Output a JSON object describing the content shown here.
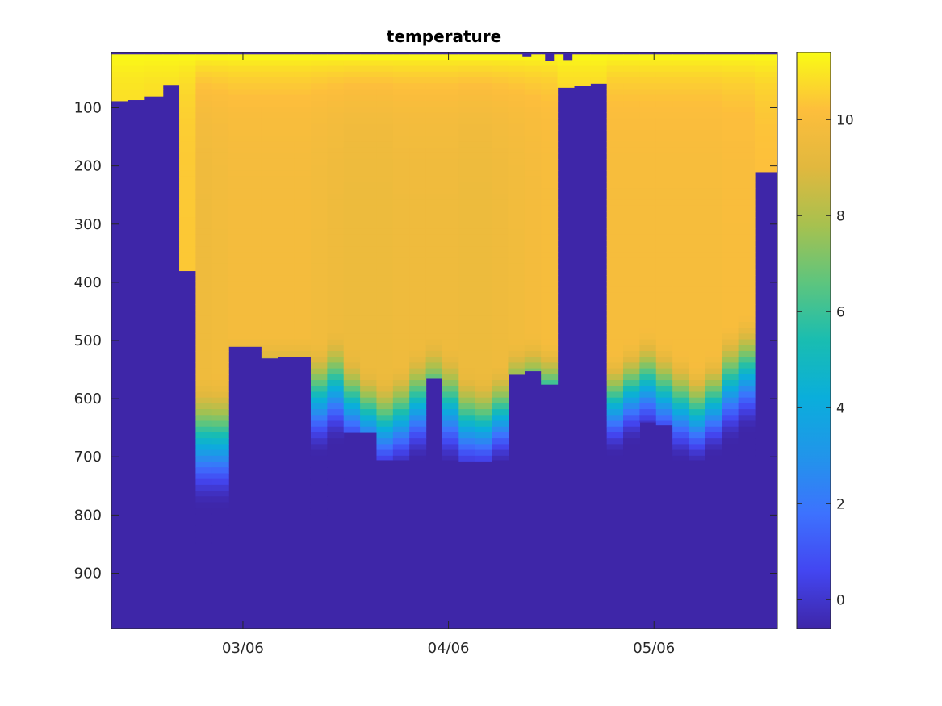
{
  "chart_data": {
    "type": "heatmap",
    "title": "temperature",
    "xlabel": "",
    "ylabel": "",
    "x_ticks": [
      "03/06",
      "04/06",
      "05/06"
    ],
    "x_tick_days": [
      13,
      23,
      33
    ],
    "xlim_days": [
      6.6,
      39.0
    ],
    "y_ticks": [
      100,
      200,
      300,
      400,
      500,
      600,
      700,
      800,
      900
    ],
    "ylim": [
      5,
      995
    ],
    "y_reversed": true,
    "grid": false,
    "colormap": "parula",
    "colorbar": {
      "ticks": [
        0,
        2,
        4,
        6,
        8,
        10
      ],
      "clim": [
        -0.6,
        11.4
      ]
    },
    "fill_value": -0.6,
    "surface_depth": 8,
    "profiles": [
      {
        "x": 6.6,
        "max_depth": 88,
        "base": 10.7,
        "cline_top": 700,
        "cline_bottom": 850
      },
      {
        "x": 7.4,
        "max_depth": 86,
        "base": 10.7,
        "cline_top": 700,
        "cline_bottom": 850
      },
      {
        "x": 8.2,
        "max_depth": 80,
        "base": 10.6,
        "cline_top": 700,
        "cline_bottom": 850
      },
      {
        "x": 9.1,
        "max_depth": 60,
        "base": 10.6,
        "cline_top": 700,
        "cline_bottom": 850
      },
      {
        "x": 9.9,
        "max_depth": 380,
        "base": 10.4,
        "cline_top": 700,
        "cline_bottom": 850
      },
      {
        "x": 10.7,
        "max_depth": 850,
        "base": 9.6,
        "cline_top": 560,
        "cline_bottom": 790
      },
      {
        "x": 11.5,
        "max_depth": 850,
        "base": 9.7,
        "cline_top": 560,
        "cline_bottom": 790
      },
      {
        "x": 12.3,
        "max_depth": 510,
        "base": 9.8,
        "cline_top": 490,
        "cline_bottom": 700
      },
      {
        "x": 13.1,
        "max_depth": 510,
        "base": 9.8,
        "cline_top": 490,
        "cline_bottom": 700
      },
      {
        "x": 13.9,
        "max_depth": 530,
        "base": 9.8,
        "cline_top": 490,
        "cline_bottom": 700
      },
      {
        "x": 14.7,
        "max_depth": 527,
        "base": 9.8,
        "cline_top": 490,
        "cline_bottom": 700
      },
      {
        "x": 15.5,
        "max_depth": 528,
        "base": 9.8,
        "cline_top": 490,
        "cline_bottom": 700
      },
      {
        "x": 16.3,
        "max_depth": 800,
        "base": 9.7,
        "cline_top": 500,
        "cline_bottom": 700
      },
      {
        "x": 17.1,
        "max_depth": 790,
        "base": 9.6,
        "cline_top": 480,
        "cline_bottom": 680
      },
      {
        "x": 17.9,
        "max_depth": 658,
        "base": 9.5,
        "cline_top": 520,
        "cline_bottom": 700
      },
      {
        "x": 18.7,
        "max_depth": 658,
        "base": 9.5,
        "cline_top": 545,
        "cline_bottom": 720
      },
      {
        "x": 19.5,
        "max_depth": 705,
        "base": 9.5,
        "cline_top": 560,
        "cline_bottom": 740
      },
      {
        "x": 20.3,
        "max_depth": 705,
        "base": 9.6,
        "cline_top": 540,
        "cline_bottom": 730
      },
      {
        "x": 21.1,
        "max_depth": 705,
        "base": 9.6,
        "cline_top": 510,
        "cline_bottom": 710
      },
      {
        "x": 21.9,
        "max_depth": 565,
        "base": 9.6,
        "cline_top": 490,
        "cline_bottom": 700
      },
      {
        "x": 22.7,
        "max_depth": 705,
        "base": 9.6,
        "cline_top": 510,
        "cline_bottom": 720
      },
      {
        "x": 23.5,
        "max_depth": 707,
        "base": 9.5,
        "cline_top": 550,
        "cline_bottom": 740
      },
      {
        "x": 24.3,
        "max_depth": 707,
        "base": 9.5,
        "cline_top": 560,
        "cline_bottom": 740
      },
      {
        "x": 25.1,
        "max_depth": 705,
        "base": 9.6,
        "cline_top": 540,
        "cline_bottom": 720
      },
      {
        "x": 25.9,
        "max_depth": 558,
        "base": 9.7,
        "cline_top": 500,
        "cline_bottom": 690
      },
      {
        "x": 26.7,
        "max_depth": 552,
        "base": 9.8,
        "cline_top": 490,
        "cline_bottom": 680
      },
      {
        "x": 27.5,
        "max_depth": 575,
        "base": 9.9,
        "cline_top": 500,
        "cline_bottom": 680
      },
      {
        "x": 28.3,
        "max_depth": 65,
        "base": 10.4,
        "cline_top": 700,
        "cline_bottom": 850
      },
      {
        "x": 29.1,
        "max_depth": 62,
        "base": 10.4,
        "cline_top": 700,
        "cline_bottom": 850
      },
      {
        "x": 29.9,
        "max_depth": 58,
        "base": 10.4,
        "cline_top": 700,
        "cline_bottom": 850
      },
      {
        "x": 30.7,
        "max_depth": 705,
        "base": 9.9,
        "cline_top": 520,
        "cline_bottom": 700
      },
      {
        "x": 31.5,
        "max_depth": 705,
        "base": 9.9,
        "cline_top": 500,
        "cline_bottom": 680
      },
      {
        "x": 32.3,
        "max_depth": 640,
        "base": 9.9,
        "cline_top": 480,
        "cline_bottom": 670
      },
      {
        "x": 33.1,
        "max_depth": 645,
        "base": 9.9,
        "cline_top": 500,
        "cline_bottom": 690
      },
      {
        "x": 33.9,
        "max_depth": 705,
        "base": 9.9,
        "cline_top": 520,
        "cline_bottom": 710
      },
      {
        "x": 34.7,
        "max_depth": 705,
        "base": 9.9,
        "cline_top": 540,
        "cline_bottom": 720
      },
      {
        "x": 35.5,
        "max_depth": 705,
        "base": 9.9,
        "cline_top": 520,
        "cline_bottom": 700
      },
      {
        "x": 36.3,
        "max_depth": 705,
        "base": 10.0,
        "cline_top": 470,
        "cline_bottom": 680
      },
      {
        "x": 37.1,
        "max_depth": 708,
        "base": 10.0,
        "cline_top": 450,
        "cline_bottom": 660
      },
      {
        "x": 37.9,
        "max_depth": 210,
        "base": 10.2,
        "cline_top": 700,
        "cline_bottom": 850
      }
    ],
    "surface_notches": [
      {
        "x": 26.6,
        "depth": 13
      },
      {
        "x": 27.7,
        "depth": 20
      },
      {
        "x": 28.6,
        "depth": 18
      }
    ]
  }
}
